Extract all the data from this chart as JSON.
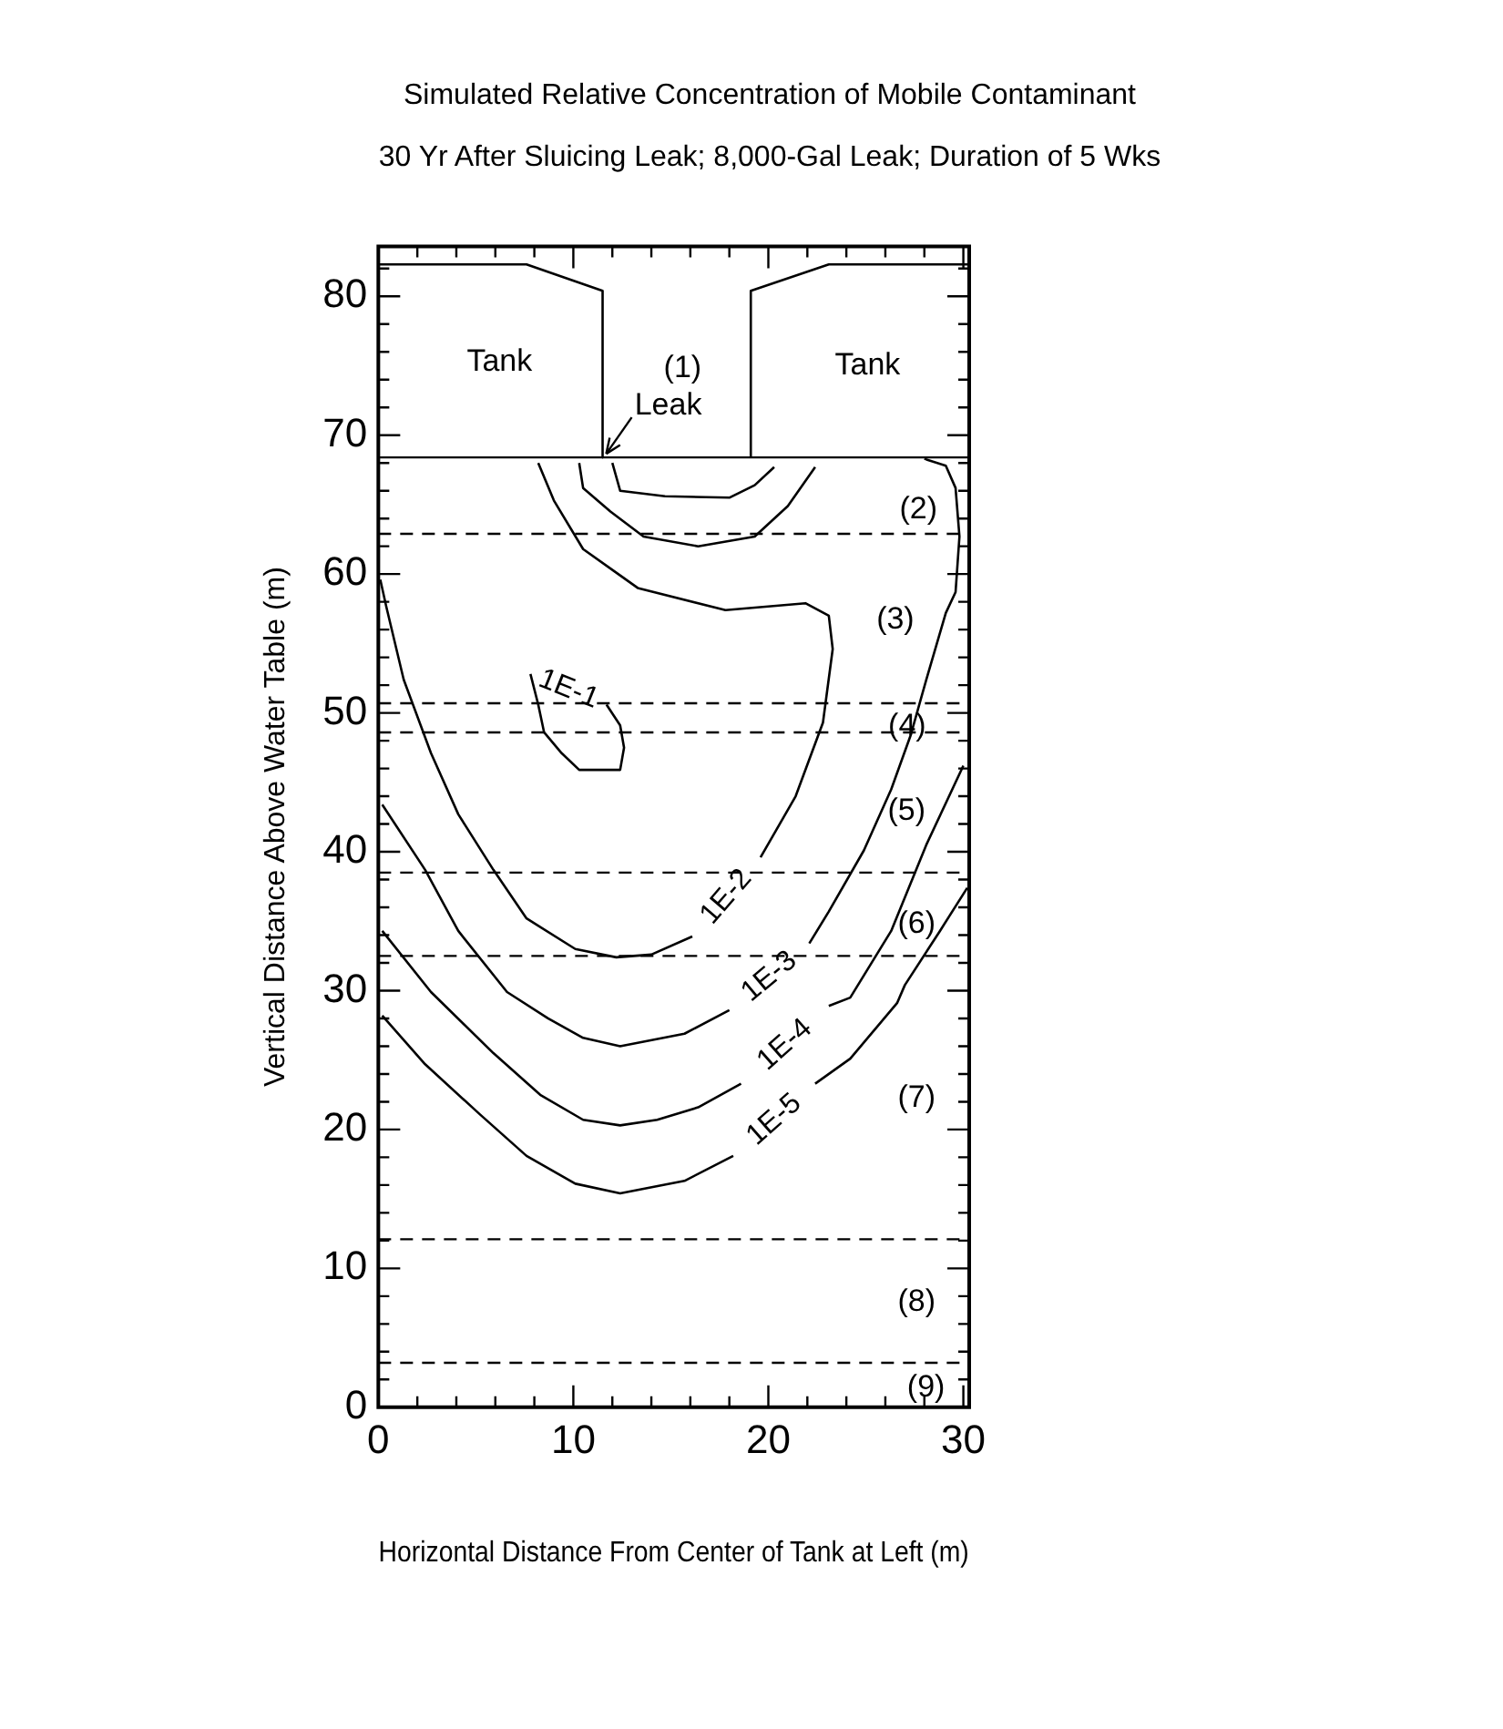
{
  "chart_data": {
    "type": "line",
    "title": "Simulated Relative Concentration of Mobile Contaminant",
    "subtitle": "30 Yr After Sluicing Leak;  8,000-Gal Leak; Duration of 5 Wks",
    "xlabel": "Horizontal Distance From Center of Tank at Left (m)",
    "ylabel": "Vertical Distance Above Water Table (m)",
    "xlim": [
      0,
      30.3
    ],
    "ylim": [
      0,
      83.6
    ],
    "xticks": [
      0,
      {
        "value": 2,
        "label": null
      },
      {
        "value": 4,
        "label": null
      },
      {
        "value": 6,
        "label": null
      },
      {
        "value": 8,
        "label": null
      },
      10,
      {
        "value": 12,
        "label": null
      },
      {
        "value": 14,
        "label": null
      },
      {
        "value": 16,
        "label": null
      },
      {
        "value": 18,
        "label": null
      },
      20,
      {
        "value": 22,
        "label": null
      },
      {
        "value": 24,
        "label": null
      },
      {
        "value": 26,
        "label": null
      },
      {
        "value": 28,
        "label": null
      },
      30
    ],
    "yticks": [
      0,
      {
        "value": 2,
        "label": null
      },
      {
        "value": 4,
        "label": null
      },
      {
        "value": 6,
        "label": null
      },
      {
        "value": 8,
        "label": null
      },
      10,
      {
        "value": 12,
        "label": null
      },
      {
        "value": 14,
        "label": null
      },
      {
        "value": 16,
        "label": null
      },
      {
        "value": 18,
        "label": null
      },
      20,
      {
        "value": 22,
        "label": null
      },
      {
        "value": 24,
        "label": null
      },
      {
        "value": 26,
        "label": null
      },
      {
        "value": 28,
        "label": null
      },
      30,
      {
        "value": 32,
        "label": null
      },
      {
        "value": 34,
        "label": null
      },
      {
        "value": 36,
        "label": null
      },
      {
        "value": 38,
        "label": null
      },
      40,
      {
        "value": 42,
        "label": null
      },
      {
        "value": 44,
        "label": null
      },
      {
        "value": 46,
        "label": null
      },
      {
        "value": 48,
        "label": null
      },
      50,
      {
        "value": 52,
        "label": null
      },
      {
        "value": 54,
        "label": null
      },
      {
        "value": 56,
        "label": null
      },
      {
        "value": 58,
        "label": null
      },
      60,
      {
        "value": 62,
        "label": null
      },
      {
        "value": 64,
        "label": null
      },
      {
        "value": 66,
        "label": null
      },
      {
        "value": 68,
        "label": null
      },
      70,
      {
        "value": 72,
        "label": null
      },
      {
        "value": 74,
        "label": null
      },
      {
        "value": 76,
        "label": null
      },
      {
        "value": 78,
        "label": null
      },
      80,
      {
        "value": 82,
        "label": null
      }
    ],
    "grid": false,
    "legend": false,
    "marker": "none",
    "line_style": "solid",
    "series": [
      {
        "color": "#000000",
        "x": [
          0,
          7.6,
          11.5,
          11.5
        ],
        "values": [
          82.3,
          82.3,
          80.4,
          68.4
        ]
      },
      {
        "color": "#000000",
        "x": [
          19.1,
          19.1,
          23.1,
          30.3
        ],
        "values": [
          68.4,
          80.4,
          82.3,
          82.3
        ]
      },
      {
        "color": "#000000",
        "x": [
          12.0,
          12.4,
          14.7,
          18.0,
          19.3,
          20.3
        ],
        "values": [
          68.0,
          66.0,
          65.6,
          65.5,
          66.4,
          67.7
        ]
      },
      {
        "color": "#000000",
        "x": [
          10.3,
          10.5,
          11.9,
          13.6,
          16.4,
          19.3,
          21.0,
          22.4
        ],
        "values": [
          68.0,
          66.2,
          64.5,
          62.7,
          62.0,
          62.7,
          64.9,
          67.7
        ]
      },
      {
        "name": "1E-1",
        "color": "#000000",
        "x": [
          11.7,
          12.4,
          12.6,
          12.4,
          10.3,
          9.4,
          8.5,
          8.2,
          7.8
        ],
        "values": [
          50.6,
          49.1,
          47.5,
          45.9,
          45.9,
          47.1,
          48.6,
          50.6,
          52.8
        ]
      },
      {
        "name": "1E-2",
        "color": "#000000",
        "x": [
          8.2,
          9.0,
          10.5,
          12.2,
          13.3,
          17.8,
          21.9,
          23.1,
          23.3,
          22.8,
          21.4,
          19.6,
          null,
          16.1,
          14.0,
          12.2,
          10.1,
          7.6,
          5.9,
          4.1,
          2.7,
          1.3,
          0.4,
          0.1
        ],
        "values": [
          68.0,
          65.3,
          61.8,
          60.1,
          59.0,
          57.4,
          57.9,
          57.0,
          54.6,
          49.3,
          44.0,
          39.6,
          null,
          33.9,
          32.6,
          32.4,
          33.0,
          35.2,
          38.7,
          42.7,
          47.1,
          52.4,
          57.7,
          59.6
        ]
      },
      {
        "name": "1E-3",
        "color": "#000000",
        "x": [
          28.0,
          29.1,
          29.6,
          29.8,
          29.6,
          29.1,
          28.1,
          27.3,
          26.3,
          24.9,
          23.1,
          22.1,
          null,
          18.0,
          15.7,
          12.4,
          10.5,
          8.7,
          6.6,
          4.1,
          2.4,
          0.2
        ],
        "values": [
          68.3,
          67.8,
          66.2,
          62.7,
          58.7,
          57.2,
          52.4,
          48.4,
          44.5,
          40.1,
          35.7,
          33.4,
          null,
          28.6,
          26.9,
          26.0,
          26.6,
          28.0,
          29.9,
          34.3,
          38.7,
          43.4
        ]
      },
      {
        "name": "1E-4",
        "color": "#000000",
        "x": [
          30.0,
          28.1,
          26.3,
          24.2,
          23.1,
          null,
          18.6,
          16.4,
          14.3,
          12.4,
          10.5,
          8.3,
          5.9,
          2.7,
          0.2
        ],
        "values": [
          46.2,
          40.5,
          34.3,
          29.5,
          28.9,
          null,
          23.3,
          21.6,
          20.7,
          20.3,
          20.7,
          22.5,
          25.5,
          29.9,
          34.3
        ]
      },
      {
        "name": "1E-5",
        "color": "#000000",
        "x": [
          30.2,
          28.8,
          27.0,
          26.6,
          24.2,
          22.4,
          null,
          18.2,
          15.7,
          12.4,
          10.1,
          7.6,
          5.2,
          2.4,
          0.2
        ],
        "values": [
          37.4,
          34.3,
          30.4,
          29.1,
          25.1,
          23.3,
          null,
          18.1,
          16.3,
          15.4,
          16.1,
          18.1,
          21.1,
          24.7,
          28.2
        ]
      }
    ],
    "ref_lines": [
      {
        "axis": "y",
        "value": 68.4,
        "color": "#000000",
        "line_style": "solid"
      },
      {
        "axis": "y",
        "value": 62.9,
        "color": "#000000",
        "line_style": "dashed"
      },
      {
        "axis": "y",
        "value": 50.7,
        "color": "#000000",
        "line_style": "dashed"
      },
      {
        "axis": "y",
        "value": 48.6,
        "color": "#000000",
        "line_style": "dashed"
      },
      {
        "axis": "y",
        "value": 38.5,
        "color": "#000000",
        "line_style": "dashed"
      },
      {
        "axis": "y",
        "value": 32.5,
        "color": "#000000",
        "line_style": "dashed"
      },
      {
        "axis": "y",
        "value": 12.1,
        "color": "#000000",
        "line_style": "dashed"
      },
      {
        "axis": "y",
        "value": 3.2,
        "color": "#000000",
        "line_style": "dashed"
      }
    ],
    "annotations": [
      "Tank",
      "Tank",
      "(1)",
      {
        "text": "Leak",
        "x": 11.5,
        "y": 68.4
      },
      "(2)",
      "(3)",
      "(4)",
      "(5)",
      "(6)",
      "(7)",
      "(8)",
      "(9)"
    ]
  }
}
